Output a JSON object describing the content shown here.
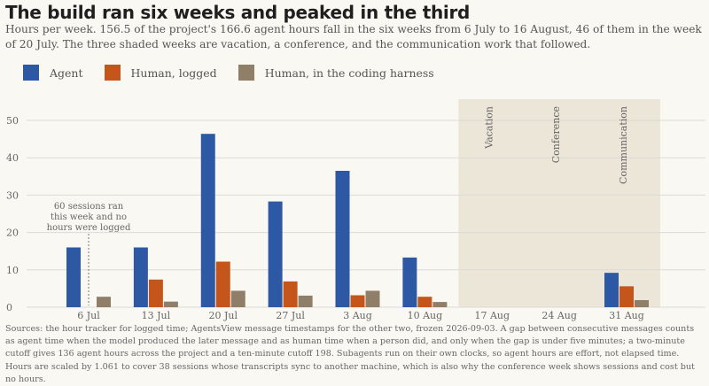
{
  "title": "The build ran six weeks and peaked in the third",
  "subtitle": "Hours per week. 156.5 of the project's 166.6 agent hours fall in the six weeks from 6 July to 16 August, 46 of them in the week of 20 July. The three shaded weeks are vacation, a conference, and the communication work that followed.",
  "sources": "Sources: the hour tracker for logged time; AgentsView message timestamps for the other two, frozen 2026-09-03. A gap between consecutive messages counts as agent time when the model produced the later message and as human time when a person did, and only when the gap is under five minutes; a two-minute cutoff gives 136 agent hours across the project and a ten-minute cutoff 198. Subagents run on their own clocks, so agent hours are effort, not elapsed time. Hours are scaled by 1.061 to cover 38 sessions whose transcripts sync to another machine, which is also why the conference week shows sessions and cost but no hours.",
  "colors": {
    "agent": "#2d59a4",
    "human_logged": "#c4561b",
    "human_harness": "#8f7f68",
    "shade": "#ece6d9",
    "grid": "#dcdad4",
    "axis_text": "#666666"
  },
  "chart_data": {
    "type": "bar",
    "categories": [
      "6 Jul",
      "13 Jul",
      "20 Jul",
      "27 Jul",
      "3 Aug",
      "10 Aug",
      "17 Aug",
      "24 Aug",
      "31 Aug"
    ],
    "series": [
      {
        "name": "Agent",
        "values": [
          16.0,
          16.0,
          46.4,
          28.3,
          36.5,
          13.3,
          0,
          0,
          9.2
        ]
      },
      {
        "name": "Human, logged",
        "values": [
          0,
          7.4,
          12.2,
          6.9,
          3.2,
          2.8,
          0,
          0,
          5.6
        ]
      },
      {
        "name": "Human, in the coding harness",
        "values": [
          2.8,
          1.5,
          4.4,
          3.1,
          4.4,
          1.4,
          0,
          0,
          1.9
        ]
      }
    ],
    "ylim": [
      0,
      55
    ],
    "yticks": [
      0,
      10,
      20,
      30,
      40,
      50
    ],
    "grid": true,
    "legend": "top-left",
    "shaded_weeks": [
      {
        "category": "17 Aug",
        "label": "Vacation"
      },
      {
        "category": "24 Aug",
        "label": "Conference"
      },
      {
        "category": "31 Aug",
        "label": "Communication"
      }
    ],
    "annotation": {
      "category": "6 Jul",
      "lines": [
        "60 sessions ran",
        "this week and no",
        "hours were logged"
      ]
    }
  }
}
